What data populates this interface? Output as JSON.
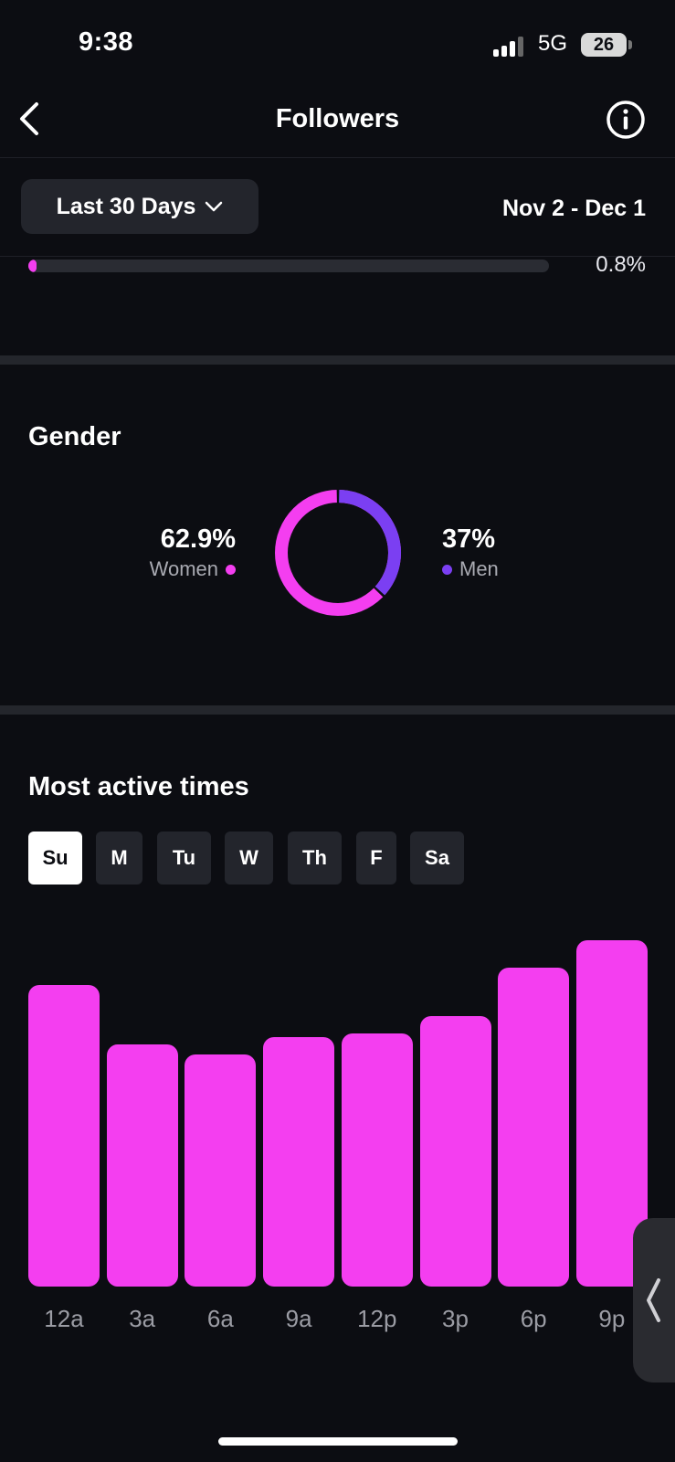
{
  "status_bar": {
    "time": "9:38",
    "network": "5G",
    "battery": "26"
  },
  "header": {
    "title": "Followers",
    "back_icon": "chevron-left-icon",
    "info_icon": "info-icon"
  },
  "filter": {
    "range_label": "Last 30 Days",
    "date_range": "Nov 2 - Dec 1"
  },
  "location_partial": {
    "value_label": "0.8%",
    "fraction": 0.008,
    "color": "#f43ef0"
  },
  "gender": {
    "title": "Gender",
    "women": {
      "pct": "62.9%",
      "label": "Women",
      "value": 62.9,
      "color": "#f43ef0"
    },
    "men": {
      "pct": "37%",
      "label": "Men",
      "value": 37,
      "color": "#7b3ff2"
    }
  },
  "active_times": {
    "title": "Most active times",
    "days": [
      "Su",
      "M",
      "Tu",
      "W",
      "Th",
      "F",
      "Sa"
    ],
    "selected_day": "Su"
  },
  "chart_data": {
    "type": "bar",
    "categories": [
      "12a",
      "3a",
      "6a",
      "9a",
      "12p",
      "3p",
      "6p",
      "9p"
    ],
    "values": [
      87,
      70,
      67,
      72,
      73,
      78,
      92,
      100
    ],
    "ylim": [
      0,
      100
    ],
    "color": "#f43ef0"
  }
}
